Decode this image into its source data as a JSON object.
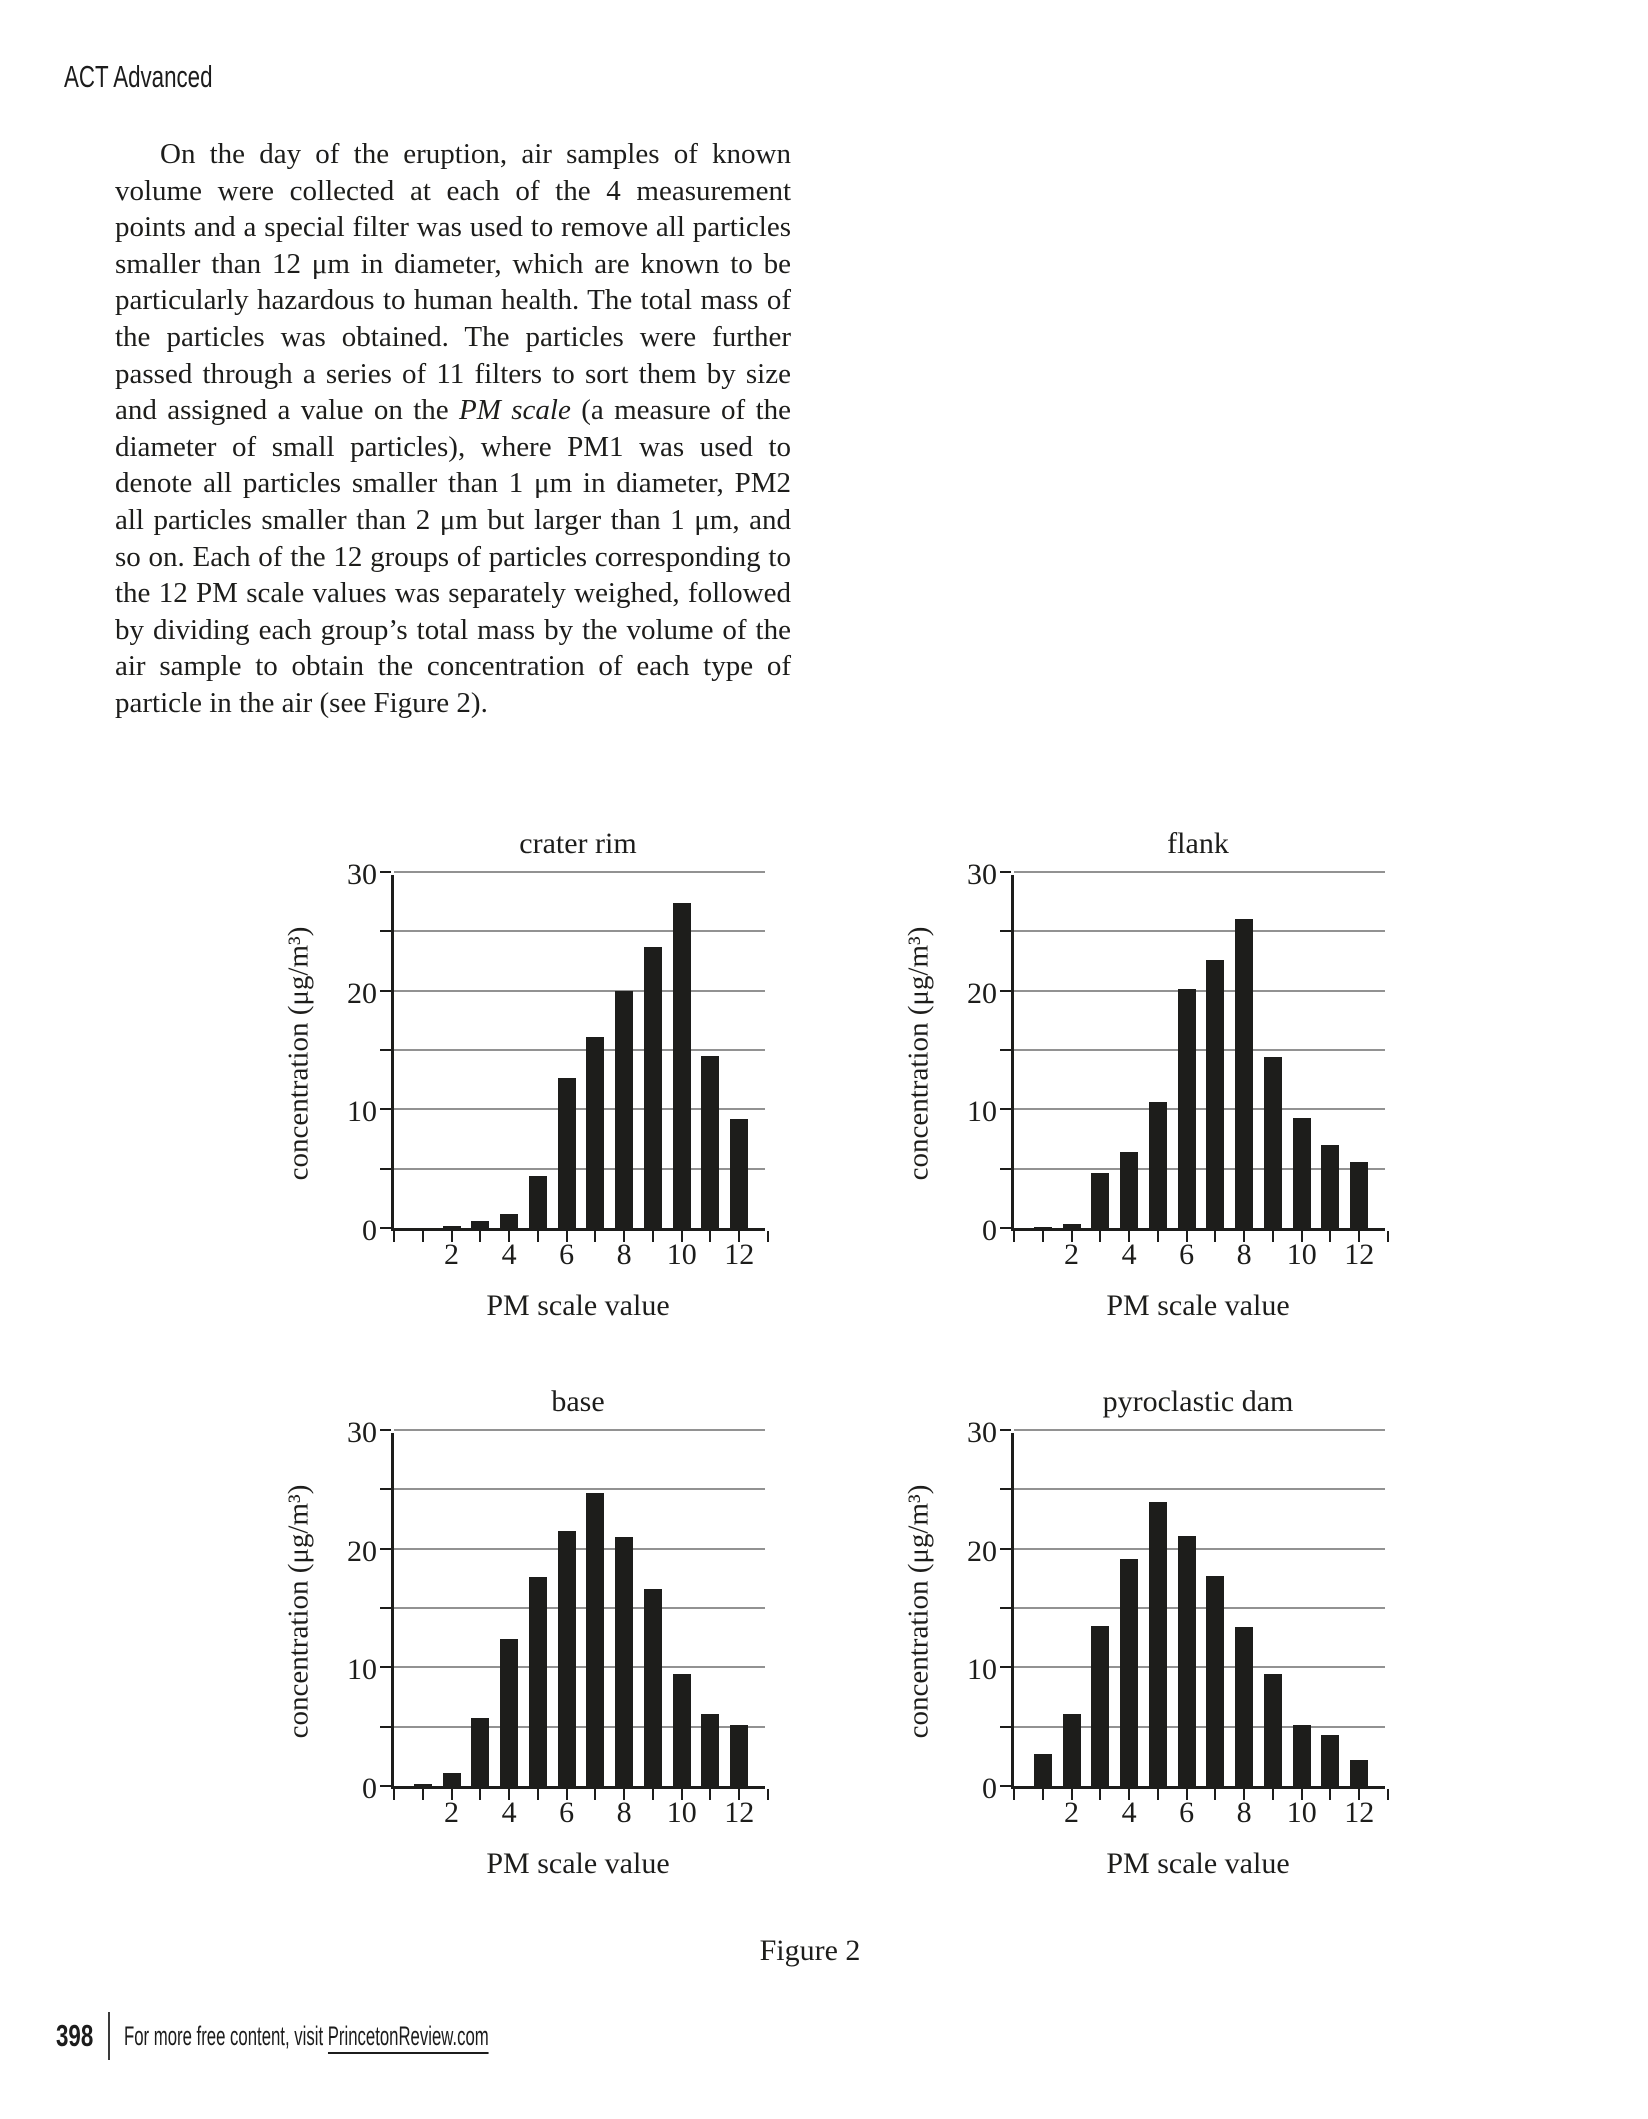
{
  "page": {
    "header": "ACT Advanced",
    "paragraph": {
      "part1": "On the day of the eruption, air samples of known volume were collected at each of the 4 measurement points and a special filter was used to remove all particles smaller than 12 μm in diameter, which are known to be particularly hazardous to human health. The total mass of the particles was obtained. The particles were further passed through a series of 11 filters to sort them by size and assigned a value on the ",
      "italic": "PM scale",
      "part2": " (a measure of the diameter of small particles), where PM1 was used to denote all particles smaller than 1 μm in diameter, PM2 all particles smaller than 2 μm but larger than 1 μm, and so on. Each of the 12 groups of particles corresponding to the 12 PM scale values was separately weighed, followed by dividing each group’s total mass by the volume of the air sample to obtain the concentration of each type of particle in the air (see Figure 2)."
    },
    "figure_caption": "Figure 2",
    "footer": {
      "page_number": "398",
      "text": "For more free content, visit ",
      "link": "PrincetonReview.com"
    }
  },
  "chart_data": [
    {
      "type": "bar",
      "title": "crater rim",
      "xlabel": "PM scale value",
      "ylabel": "concentration (μg/m³)",
      "ylim": [
        0,
        30
      ],
      "ytick_labels": [
        0,
        10,
        20,
        30
      ],
      "grid_step": 5,
      "categories": [
        1,
        2,
        3,
        4,
        5,
        6,
        7,
        8,
        9,
        10,
        11,
        12
      ],
      "xtick_labels": [
        2,
        4,
        6,
        8,
        10,
        12
      ],
      "values": [
        0,
        0.2,
        0.6,
        1.2,
        4.4,
        12.6,
        16.1,
        20.0,
        23.7,
        27.4,
        14.5,
        9.2
      ]
    },
    {
      "type": "bar",
      "title": "flank",
      "xlabel": "PM scale value",
      "ylabel": "concentration (μg/m³)",
      "ylim": [
        0,
        30
      ],
      "ytick_labels": [
        0,
        10,
        20,
        30
      ],
      "grid_step": 5,
      "categories": [
        1,
        2,
        3,
        4,
        5,
        6,
        7,
        8,
        9,
        10,
        11,
        12
      ],
      "xtick_labels": [
        2,
        4,
        6,
        8,
        10,
        12
      ],
      "values": [
        0.1,
        0.3,
        4.6,
        6.4,
        10.6,
        20.1,
        22.6,
        26.0,
        14.4,
        9.3,
        7.0,
        5.6
      ]
    },
    {
      "type": "bar",
      "title": "base",
      "xlabel": "PM scale value",
      "ylabel": "concentration (μg/m³)",
      "ylim": [
        0,
        30
      ],
      "ytick_labels": [
        0,
        10,
        20,
        30
      ],
      "grid_step": 5,
      "categories": [
        1,
        2,
        3,
        4,
        5,
        6,
        7,
        8,
        9,
        10,
        11,
        12
      ],
      "xtick_labels": [
        2,
        4,
        6,
        8,
        10,
        12
      ],
      "values": [
        0.2,
        1.1,
        5.7,
        12.4,
        17.6,
        21.5,
        24.7,
        21.0,
        16.6,
        9.4,
        6.1,
        5.1
      ]
    },
    {
      "type": "bar",
      "title": "pyroclastic dam",
      "xlabel": "PM scale value",
      "ylabel": "concentration (μg/m³)",
      "ylim": [
        0,
        30
      ],
      "ytick_labels": [
        0,
        10,
        20,
        30
      ],
      "grid_step": 5,
      "categories": [
        1,
        2,
        3,
        4,
        5,
        6,
        7,
        8,
        9,
        10,
        11,
        12
      ],
      "xtick_labels": [
        2,
        4,
        6,
        8,
        10,
        12
      ],
      "values": [
        2.7,
        6.1,
        13.5,
        19.1,
        23.9,
        21.1,
        17.7,
        13.4,
        9.4,
        5.1,
        4.3,
        2.2
      ]
    }
  ]
}
